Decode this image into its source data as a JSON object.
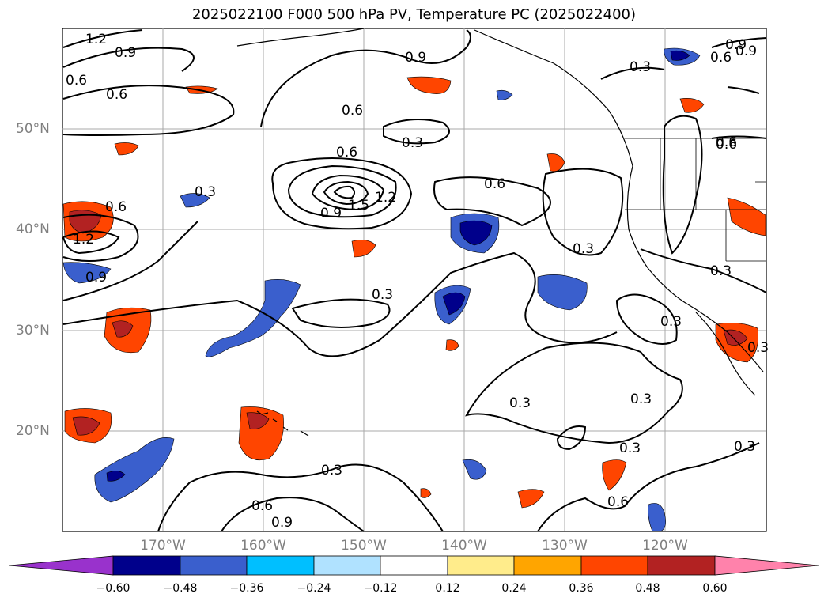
{
  "title": "2025022100 F000 500 hPa PV, Temperature PC (2025022400)",
  "lat_labels": [
    "50°N",
    "40°N",
    "30°N",
    "20°N"
  ],
  "lon_labels": [
    "170°W",
    "160°W",
    "150°W",
    "140°W",
    "130°W",
    "120°W"
  ],
  "contour_labels": [
    "1.2",
    "0.9",
    "0.6",
    "0.6",
    "0.6",
    "0.9",
    "0.3",
    "0.6",
    "0.9",
    "0.9",
    "0.6",
    "0.6",
    "0.3",
    "0.6",
    "1.5",
    "1.2",
    "0.9",
    "0.3",
    "0.6",
    "0.3",
    "1.2",
    "0.9",
    "0.3",
    "0.3",
    "0.3",
    "0.3",
    "0.3",
    "0.3",
    "0.6",
    "0.9",
    "0.3",
    "0.6",
    "0.3",
    "0.3",
    "0.6"
  ],
  "colorbar": {
    "ticks": [
      "−0.60",
      "−0.48",
      "−0.36",
      "−0.24",
      "−0.12",
      "0.12",
      "0.24",
      "0.36",
      "0.48",
      "0.60"
    ],
    "colors": [
      "#9932cc",
      "#00008b",
      "#3a5fcd",
      "#00bfff",
      "#b0e2ff",
      "#ffffff",
      "#ffec8b",
      "#ffa500",
      "#ff4500",
      "#b22222",
      "#ff82ab"
    ]
  }
}
